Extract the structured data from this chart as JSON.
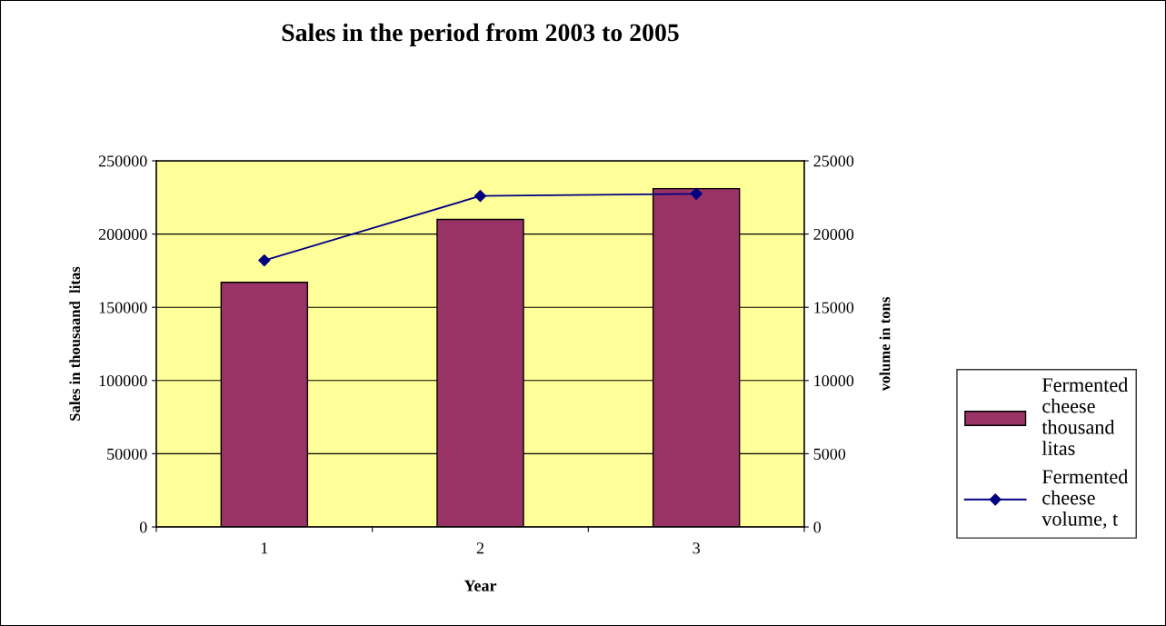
{
  "chart_data": {
    "type": "bar",
    "title": "Sales in the period from 2003 to 2005",
    "xlabel": "Year",
    "ylabel": "Sales in thousaand  litas",
    "y2label": "volume in tons",
    "categories": [
      "1",
      "2",
      "3"
    ],
    "series": [
      {
        "name": "Fermented cheese thousand litas",
        "color": "#993366",
        "values": [
          167000,
          210000,
          231000
        ]
      },
      {
        "name": "Fermented cheese volume, t",
        "color": "#000080",
        "type": "line",
        "axis": "y2",
        "values": [
          18200,
          22600,
          22750
        ]
      }
    ],
    "ylim": [
      0,
      250000
    ],
    "yticks": [
      0,
      50000,
      100000,
      150000,
      200000,
      250000
    ],
    "y2lim": [
      0,
      25000
    ],
    "y2ticks": [
      0,
      5000,
      10000,
      15000,
      20000,
      25000
    ],
    "grid": "y",
    "legend": "right",
    "marker": "diamond"
  }
}
